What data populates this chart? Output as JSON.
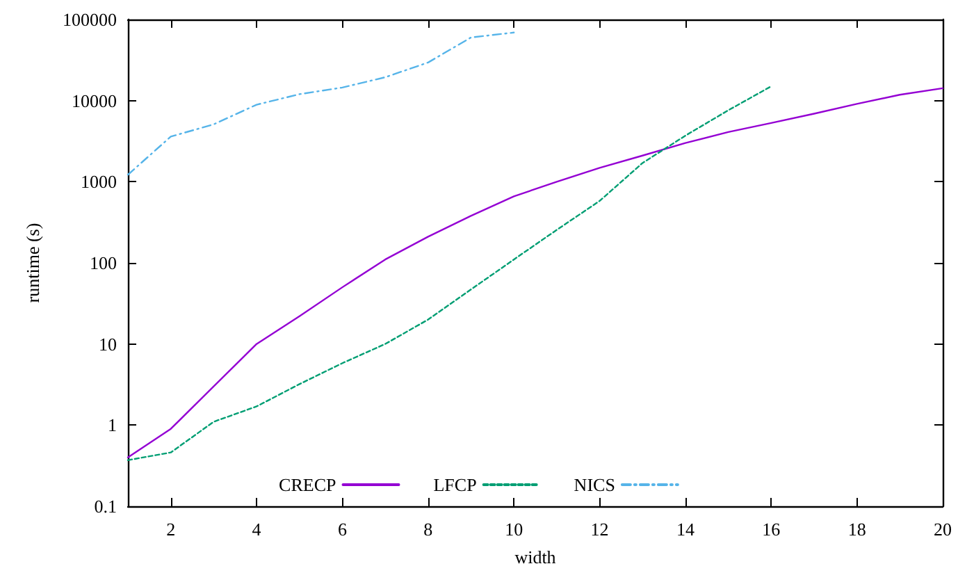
{
  "chart_data": {
    "type": "line",
    "xlabel": "width",
    "ylabel": "runtime (s)",
    "log": "y",
    "grid": false,
    "legend": "bottom",
    "marker": "none",
    "xlim": [
      1,
      20
    ],
    "xticks": [
      2,
      4,
      6,
      8,
      10,
      12,
      14,
      16,
      18,
      20
    ],
    "ylim": [
      0.1,
      100000
    ],
    "yticks": [
      0.1,
      1,
      10,
      100,
      1000,
      10000,
      100000
    ],
    "series": [
      {
        "name": "CRECP",
        "color": "#9400d3",
        "line_style": "solid",
        "x": [
          1,
          2,
          3,
          4,
          5,
          6,
          7,
          8,
          9,
          10,
          11,
          12,
          13,
          14,
          15,
          16,
          17,
          18,
          19,
          20
        ],
        "values": [
          0.4,
          0.9,
          3,
          10,
          22,
          50,
          110,
          210,
          380,
          660,
          1000,
          1480,
          2100,
          3000,
          4100,
          5300,
          6900,
          9100,
          11800,
          14200
        ]
      },
      {
        "name": "LFCP",
        "color": "#009e73",
        "line_style": "dashed",
        "x": [
          1,
          2,
          3,
          4,
          5,
          6,
          7,
          8,
          9,
          10,
          11,
          12,
          13,
          14,
          15,
          16
        ],
        "values": [
          0.37,
          0.46,
          1.1,
          1.7,
          3.2,
          5.8,
          10,
          20,
          47,
          110,
          255,
          580,
          1700,
          3700,
          7600,
          15000
        ]
      },
      {
        "name": "NICS",
        "color": "#56b4e9",
        "line_style": "dashdot",
        "x": [
          1,
          2,
          3,
          4,
          5,
          6,
          7,
          8,
          9,
          10
        ],
        "values": [
          1220,
          3600,
          5100,
          8900,
          12000,
          14500,
          19400,
          29500,
          60000,
          69000
        ]
      }
    ]
  }
}
